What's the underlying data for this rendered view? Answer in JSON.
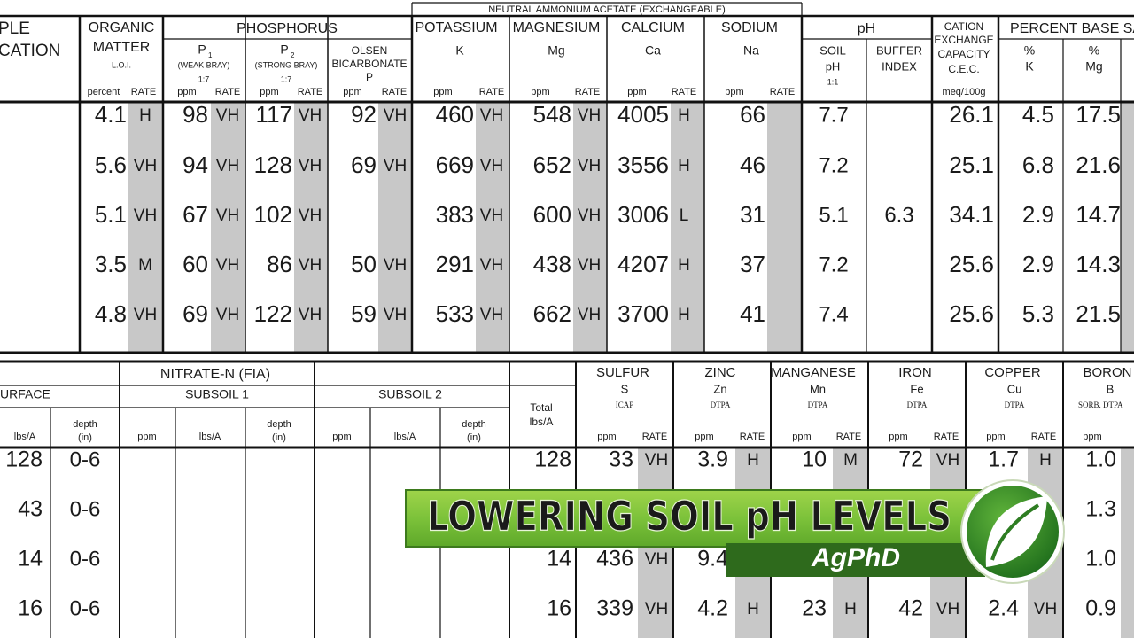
{
  "top_table": {
    "group_header": "NEUTRAL AMMONIUM ACETATE (EXCHANGEABLE)",
    "sample": [
      "PLE",
      "CATION"
    ],
    "organic_matter": {
      "title": [
        "ORGANIC",
        "MATTER"
      ],
      "method": "L.O.I.",
      "unit": "percent",
      "rate": "RATE"
    },
    "phosphorus": {
      "title": "PHOSPHORUS",
      "p1": {
        "symbol": "P",
        "sub": "1",
        "method": "(WEAK  BRAY)",
        "ratio": "1:7",
        "unit": "ppm",
        "rate": "RATE"
      },
      "p2": {
        "symbol": "P",
        "sub": "2",
        "method": "(STRONG  BRAY)",
        "ratio": "1:7",
        "unit": "ppm",
        "rate": "RATE"
      },
      "olsen": {
        "title": [
          "OLSEN",
          "BICARBONATE",
          "P"
        ],
        "unit": "ppm",
        "rate": "RATE"
      }
    },
    "potassium": {
      "title": "POTASSIUM",
      "symbol": "K",
      "unit": "ppm",
      "rate": "RATE"
    },
    "magnesium": {
      "title": "MAGNESIUM",
      "symbol": "Mg",
      "unit": "ppm",
      "rate": "RATE"
    },
    "calcium": {
      "title": "CALCIUM",
      "symbol": "Ca",
      "unit": "ppm",
      "rate": "RATE"
    },
    "sodium": {
      "title": "SODIUM",
      "symbol": "Na",
      "unit": "ppm",
      "rate": "RATE"
    },
    "ph": {
      "title": "pH",
      "soil": [
        "SOIL",
        "pH",
        "1:1"
      ],
      "buffer": [
        "BUFFER",
        "INDEX"
      ]
    },
    "cec": {
      "title": [
        "CATION",
        "EXCHANGE",
        "CAPACITY",
        "C.E.C."
      ],
      "unit": "meq/100g"
    },
    "base_saturation": {
      "title": "PERCENT  BASE SATU",
      "k": [
        "%",
        "K"
      ],
      "mg": [
        "%",
        "Mg"
      ]
    },
    "rows": [
      {
        "om": "4.1",
        "om_rate": "H",
        "p1": "98",
        "p1_rate": "VH",
        "p2": "117",
        "p2_rate": "VH",
        "olsen": "92",
        "olsen_rate": "VH",
        "k": "460",
        "k_rate": "VH",
        "mg": "548",
        "mg_rate": "VH",
        "ca": "4005",
        "ca_rate": "H",
        "na": "66",
        "soil_ph": "7.7",
        "cec": "26.1",
        "pct_k": "4.5",
        "pct_mg": "17.5"
      },
      {
        "om": "5.6",
        "om_rate": "VH",
        "p1": "94",
        "p1_rate": "VH",
        "p2": "128",
        "p2_rate": "VH",
        "olsen": "69",
        "olsen_rate": "VH",
        "k": "669",
        "k_rate": "VH",
        "mg": "652",
        "mg_rate": "VH",
        "ca": "3556",
        "ca_rate": "H",
        "na": "46",
        "soil_ph": "7.2",
        "cec": "25.1",
        "pct_k": "6.8",
        "pct_mg": "21.6"
      },
      {
        "om": "5.1",
        "om_rate": "VH",
        "p1": "67",
        "p1_rate": "VH",
        "p2": "102",
        "p2_rate": "VH",
        "k": "383",
        "k_rate": "VH",
        "mg": "600",
        "mg_rate": "VH",
        "ca": "3006",
        "ca_rate": "L",
        "na": "31",
        "soil_ph": "5.1",
        "buffer": "6.3",
        "cec": "34.1",
        "pct_k": "2.9",
        "pct_mg": "14.7"
      },
      {
        "om": "3.5",
        "om_rate": "M",
        "p1": "60",
        "p1_rate": "VH",
        "p2": "86",
        "p2_rate": "VH",
        "olsen": "50",
        "olsen_rate": "VH",
        "k": "291",
        "k_rate": "VH",
        "mg": "438",
        "mg_rate": "VH",
        "ca": "4207",
        "ca_rate": "H",
        "na": "37",
        "soil_ph": "7.2",
        "cec": "25.6",
        "pct_k": "2.9",
        "pct_mg": "14.3"
      },
      {
        "om": "4.8",
        "om_rate": "VH",
        "p1": "69",
        "p1_rate": "VH",
        "p2": "122",
        "p2_rate": "VH",
        "olsen": "59",
        "olsen_rate": "VH",
        "k": "533",
        "k_rate": "VH",
        "mg": "662",
        "mg_rate": "VH",
        "ca": "3700",
        "ca_rate": "H",
        "na": "41",
        "soil_ph": "7.4",
        "cec": "25.6",
        "pct_k": "5.3",
        "pct_mg": "21.5"
      }
    ]
  },
  "bottom_table": {
    "nitrate": {
      "title": "NITRATE-N (FIA)",
      "surface": {
        "title": "URFACE",
        "lbs": "lbs/A",
        "depth": [
          "depth",
          "(in)"
        ]
      },
      "subsoil1": {
        "title": "SUBSOIL 1",
        "ppm": "ppm",
        "lbs": "lbs/A",
        "depth": [
          "depth",
          "(in)"
        ]
      },
      "subsoil2": {
        "title": "SUBSOIL 2",
        "ppm": "ppm",
        "lbs": "lbs/A",
        "depth": [
          "depth",
          "(in)"
        ]
      },
      "total": [
        "Total",
        "lbs/A"
      ]
    },
    "sulfur": {
      "title": "SULFUR",
      "symbol": "S",
      "method": "ICAP",
      "unit": "ppm",
      "rate": "RATE"
    },
    "zinc": {
      "title": "ZINC",
      "symbol": "Zn",
      "method": "DTPA",
      "unit": "ppm",
      "rate": "RATE"
    },
    "manganese": {
      "title": "MANGANESE",
      "symbol": "Mn",
      "method": "DTPA",
      "unit": "ppm",
      "rate": "RATE"
    },
    "iron": {
      "title": "IRON",
      "symbol": "Fe",
      "method": "DTPA",
      "unit": "ppm",
      "rate": "RATE"
    },
    "copper": {
      "title": "COPPER",
      "symbol": "Cu",
      "method": "DTPA",
      "unit": "ppm",
      "rate": "RATE"
    },
    "boron": {
      "title": "BORON",
      "symbol": "B",
      "method": "SORB. DTPA",
      "unit": "ppm"
    },
    "rows": [
      {
        "surface_lbs": "128",
        "depth": "0-6",
        "total": "128",
        "s": "33",
        "s_rate": "VH",
        "zn": "3.9",
        "zn_rate": "H",
        "mn": "10",
        "mn_rate": "M",
        "fe": "72",
        "fe_rate": "VH",
        "cu": "1.7",
        "cu_rate": "H",
        "b": "1.0"
      },
      {
        "surface_lbs": "43",
        "depth": "0-6",
        "b": "1.3"
      },
      {
        "surface_lbs": "14",
        "depth": "0-6",
        "total": "14",
        "s": "436",
        "s_rate": "VH",
        "zn": "9.4",
        "b": "1.0"
      },
      {
        "surface_lbs": "16",
        "depth": "0-6",
        "total": "16",
        "s": "339",
        "s_rate": "VH",
        "zn": "4.2",
        "zn_rate": "H",
        "mn": "23",
        "mn_rate": "H",
        "fe": "42",
        "fe_rate": "VH",
        "cu": "2.4",
        "cu_rate": "VH",
        "b": "0.9"
      }
    ]
  },
  "banner": {
    "title": "LOWERING SOIL pH LEVELS",
    "brand": "AgPhD"
  }
}
